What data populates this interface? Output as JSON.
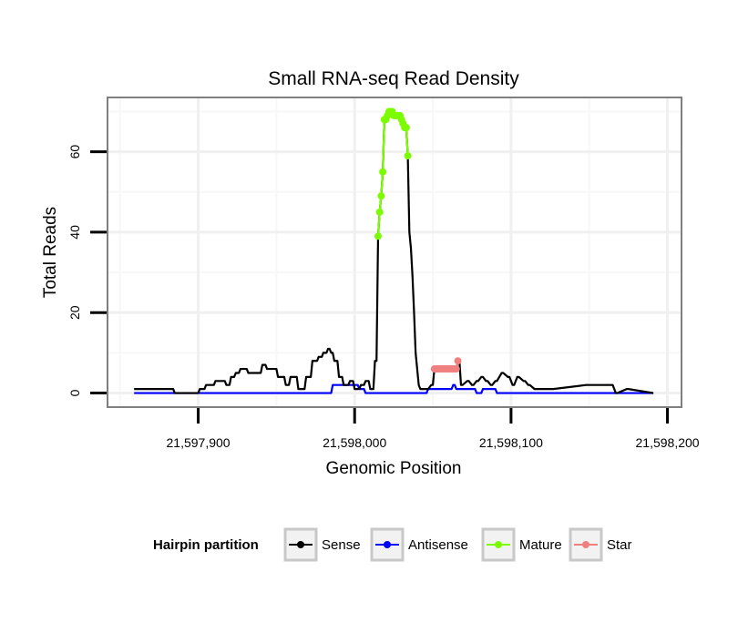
{
  "chart_data": {
    "type": "line",
    "title": "Small RNA-seq Read Density",
    "xlabel": "Genomic Position",
    "ylabel": "Total Reads",
    "xlim": [
      21597842,
      21598209
    ],
    "ylim": [
      -3.5,
      73.5
    ],
    "x_ticks": [
      21597900,
      21598000,
      21598100,
      21598200
    ],
    "x_tick_labels": [
      "21,597,900",
      "21,598,000",
      "21,598,100",
      "21,598,200"
    ],
    "y_ticks": [
      0,
      20,
      40,
      60
    ],
    "y_tick_labels": [
      "0",
      "20",
      "40",
      "60"
    ],
    "grid": true,
    "legend": {
      "title": "Hairpin partition",
      "position": "bottom",
      "entries": [
        "Sense",
        "Antisense",
        "Mature",
        "Star"
      ]
    },
    "series": [
      {
        "name": "Sense",
        "color": "#000000",
        "markers": false,
        "x": [
          21597859,
          21597884,
          21597885,
          21597900,
          21597901,
          21597904,
          21597905,
          21597910,
          21597911,
          21597917,
          21597918,
          21597920,
          21597921,
          21597923,
          21597924,
          21597926,
          21597927,
          21597931,
          21597932,
          21597940,
          21597941,
          21597943,
          21597944,
          21597950,
          21597951,
          21597955,
          21597956,
          21597958,
          21597959,
          21597963,
          21597964,
          21597968,
          21597969,
          21597972,
          21597973,
          21597976,
          21597977,
          21597979,
          21597980,
          21597982,
          21597983,
          21597984,
          21597985,
          21597986,
          21597987,
          21597989,
          21597990,
          21597992,
          21597993,
          21597996,
          21597997,
          21597999,
          21598000,
          21598003,
          21598004,
          21598006,
          21598007,
          21598009,
          21598010,
          21598012,
          21598013,
          21598014,
          21598015,
          21598016,
          21598017,
          21598018,
          21598019,
          21598020,
          21598021,
          21598022,
          21598023,
          21598024,
          21598026,
          21598028,
          21598030,
          21598031,
          21598032,
          21598033,
          21598034,
          21598035,
          21598036,
          21598037,
          21598038,
          21598039,
          21598040,
          21598041,
          21598042,
          21598047,
          21598049,
          21598050,
          21598051,
          21598053,
          21598056,
          21598060,
          21598063,
          21598065,
          21598066,
          21598067,
          21598068,
          21598069,
          21598072,
          21598073,
          21598075,
          21598076,
          21598078,
          21598079,
          21598081,
          21598082,
          21598084,
          21598085,
          21598087,
          21598088,
          21598090,
          21598091,
          21598094,
          21598095,
          21598098,
          21598099,
          21598101,
          21598102,
          21598104,
          21598105,
          21598108,
          21598109,
          21598111,
          21598112,
          21598115,
          21598116,
          21598119,
          21598120,
          21598123,
          21598124,
          21598126,
          21598127,
          21598148,
          21598149,
          21598164,
          21598165,
          21598167,
          21598168,
          21598174,
          21598175,
          21598191
        ],
        "y": [
          1,
          1,
          0,
          0,
          1,
          1,
          2,
          2,
          3,
          3,
          2,
          2,
          4,
          4,
          5,
          5,
          6,
          6,
          5,
          5,
          7,
          7,
          6,
          6,
          4,
          4,
          2,
          2,
          4,
          4,
          1,
          1,
          4,
          4,
          8,
          8,
          9,
          9,
          10,
          10,
          11,
          11,
          10,
          10,
          8,
          8,
          4,
          4,
          2,
          2,
          3,
          3,
          1,
          1,
          2,
          2,
          3,
          3,
          1,
          1,
          8,
          8,
          39,
          45,
          49,
          55,
          68,
          68,
          69,
          70,
          70,
          70,
          69,
          69,
          69,
          68,
          67,
          66,
          59,
          40,
          36,
          29,
          20,
          10,
          6,
          2,
          1,
          1,
          2,
          2,
          6,
          6,
          6,
          6,
          6,
          6,
          8,
          8,
          2,
          2,
          3,
          3,
          2,
          2,
          3,
          3,
          4,
          4,
          3,
          3,
          2,
          2,
          3,
          3,
          5,
          5,
          4,
          4,
          2,
          2,
          4,
          4,
          3,
          3,
          2,
          2,
          1,
          1,
          1,
          1,
          1,
          1,
          1,
          1,
          2,
          2,
          2,
          2,
          0,
          0,
          1,
          1,
          0
        ]
      },
      {
        "name": "Antisense",
        "color": "#0000ff",
        "markers": false,
        "x": [
          21597859,
          21597985,
          21597986,
          21598002,
          21598003,
          21598006,
          21598007,
          21598046,
          21598047,
          21598062,
          21598063,
          21598064,
          21598065,
          21598077,
          21598078,
          21598081,
          21598082,
          21598090,
          21598091,
          21598191
        ],
        "y": [
          0,
          0,
          2,
          2,
          1,
          1,
          0,
          0,
          1,
          1,
          2,
          2,
          1,
          1,
          0,
          0,
          1,
          1,
          0,
          0
        ]
      },
      {
        "name": "Mature",
        "color": "#7cfc00",
        "markers": true,
        "x": [
          21598015,
          21598016,
          21598017,
          21598018,
          21598019,
          21598020,
          21598021,
          21598022,
          21598023,
          21598024,
          21598025,
          21598026,
          21598027,
          21598028,
          21598029,
          21598030,
          21598031,
          21598032,
          21598033,
          21598034
        ],
        "y": [
          39,
          45,
          49,
          55,
          68,
          68,
          69,
          70,
          70,
          70,
          69,
          69,
          69,
          69,
          69,
          68,
          67,
          66,
          66,
          59
        ]
      },
      {
        "name": "Star",
        "color": "#f08080",
        "markers": true,
        "x": [
          21598051,
          21598052,
          21598053,
          21598054,
          21598055,
          21598056,
          21598057,
          21598058,
          21598059,
          21598060,
          21598061,
          21598062,
          21598063,
          21598064,
          21598065,
          21598066
        ],
        "y": [
          6,
          6,
          6,
          6,
          6,
          6,
          6,
          6,
          6,
          6,
          6,
          6,
          6,
          6,
          6,
          8
        ]
      }
    ]
  }
}
